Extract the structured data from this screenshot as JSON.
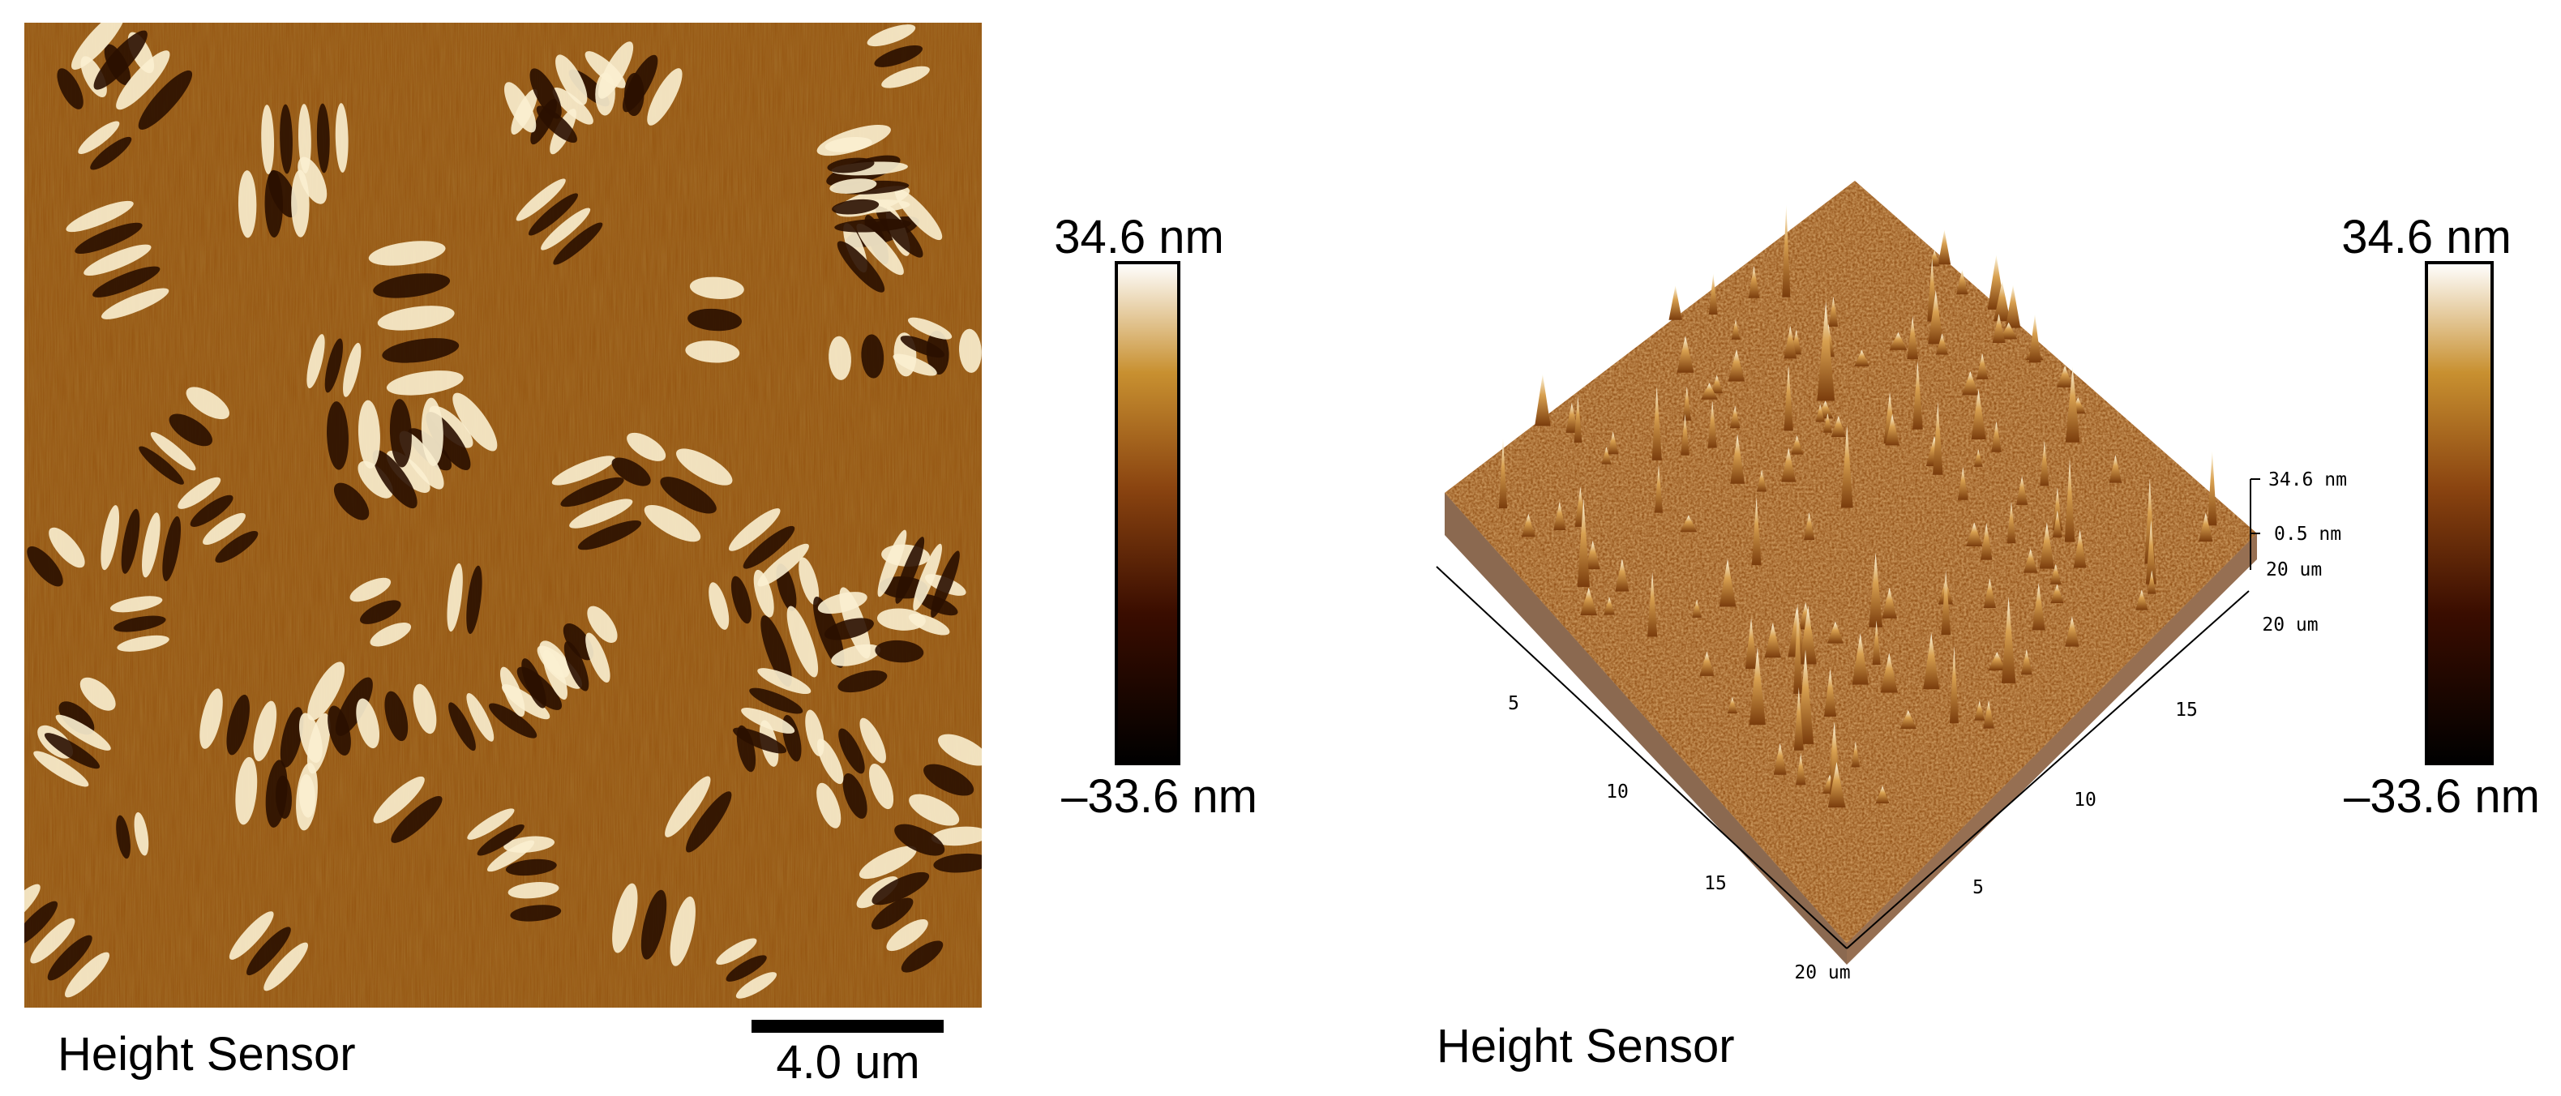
{
  "left_panel": {
    "colorbar": {
      "max_label": "34.6 nm",
      "min_label": "–33.6 nm"
    },
    "caption": "Height Sensor",
    "scale_bar": "4.0 um"
  },
  "right_panel": {
    "colorbar": {
      "max_label": "34.6 nm",
      "min_label": "–33.6 nm"
    },
    "caption": "Height Sensor",
    "z_axis_labels": [
      "34.6 nm",
      "0.5 nm",
      "20 um"
    ],
    "front_axis_labels": [
      "5",
      "10",
      "15",
      "20 um"
    ],
    "right_axis_labels": [
      "5",
      "10",
      "15",
      "20 um"
    ]
  }
}
